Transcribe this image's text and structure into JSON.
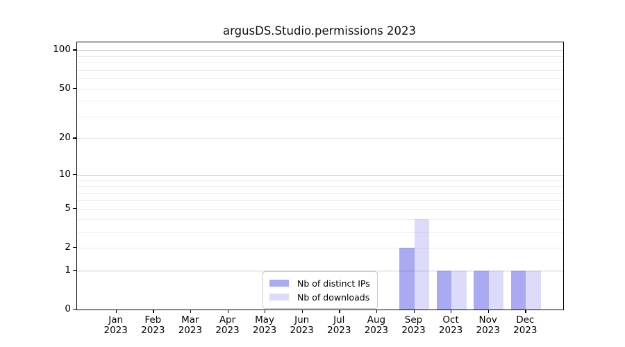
{
  "chart_data": {
    "type": "bar",
    "title": "argusDS.Studio.permissions 2023",
    "categories": [
      {
        "month": "Jan",
        "year": "2023"
      },
      {
        "month": "Feb",
        "year": "2023"
      },
      {
        "month": "Mar",
        "year": "2023"
      },
      {
        "month": "Apr",
        "year": "2023"
      },
      {
        "month": "May",
        "year": "2023"
      },
      {
        "month": "Jun",
        "year": "2023"
      },
      {
        "month": "Jul",
        "year": "2023"
      },
      {
        "month": "Aug",
        "year": "2023"
      },
      {
        "month": "Sep",
        "year": "2023"
      },
      {
        "month": "Oct",
        "year": "2023"
      },
      {
        "month": "Nov",
        "year": "2023"
      },
      {
        "month": "Dec",
        "year": "2023"
      }
    ],
    "series": [
      {
        "name": "Nb of distinct IPs",
        "color": "#aaaaf2",
        "values": [
          0,
          0,
          0,
          0,
          0,
          0,
          0,
          0,
          2,
          1,
          1,
          1
        ]
      },
      {
        "name": "Nb of downloads",
        "color": "#dcdcfa",
        "values": [
          0,
          0,
          0,
          0,
          0,
          0,
          0,
          0,
          4,
          1,
          1,
          1
        ]
      }
    ],
    "yscale": "log1p",
    "ylim": [
      0,
      115
    ],
    "yticks": [
      0,
      1,
      2,
      5,
      10,
      20,
      50,
      100
    ],
    "grid_values_minor": [
      2,
      3,
      4,
      5,
      6,
      7,
      8,
      9,
      20,
      30,
      40,
      50,
      60,
      70,
      80,
      90
    ],
    "grid_values_major": [
      1,
      10,
      100
    ],
    "grid_minor_color": "rgba(0,0,0,0.08)",
    "grid_major_color": "rgba(0,0,0,0.20)",
    "axis_color": "#000000",
    "legend_position": "lower center inside plot",
    "legend_labels": [
      "Nb of distinct IPs",
      "Nb of downloads"
    ]
  }
}
